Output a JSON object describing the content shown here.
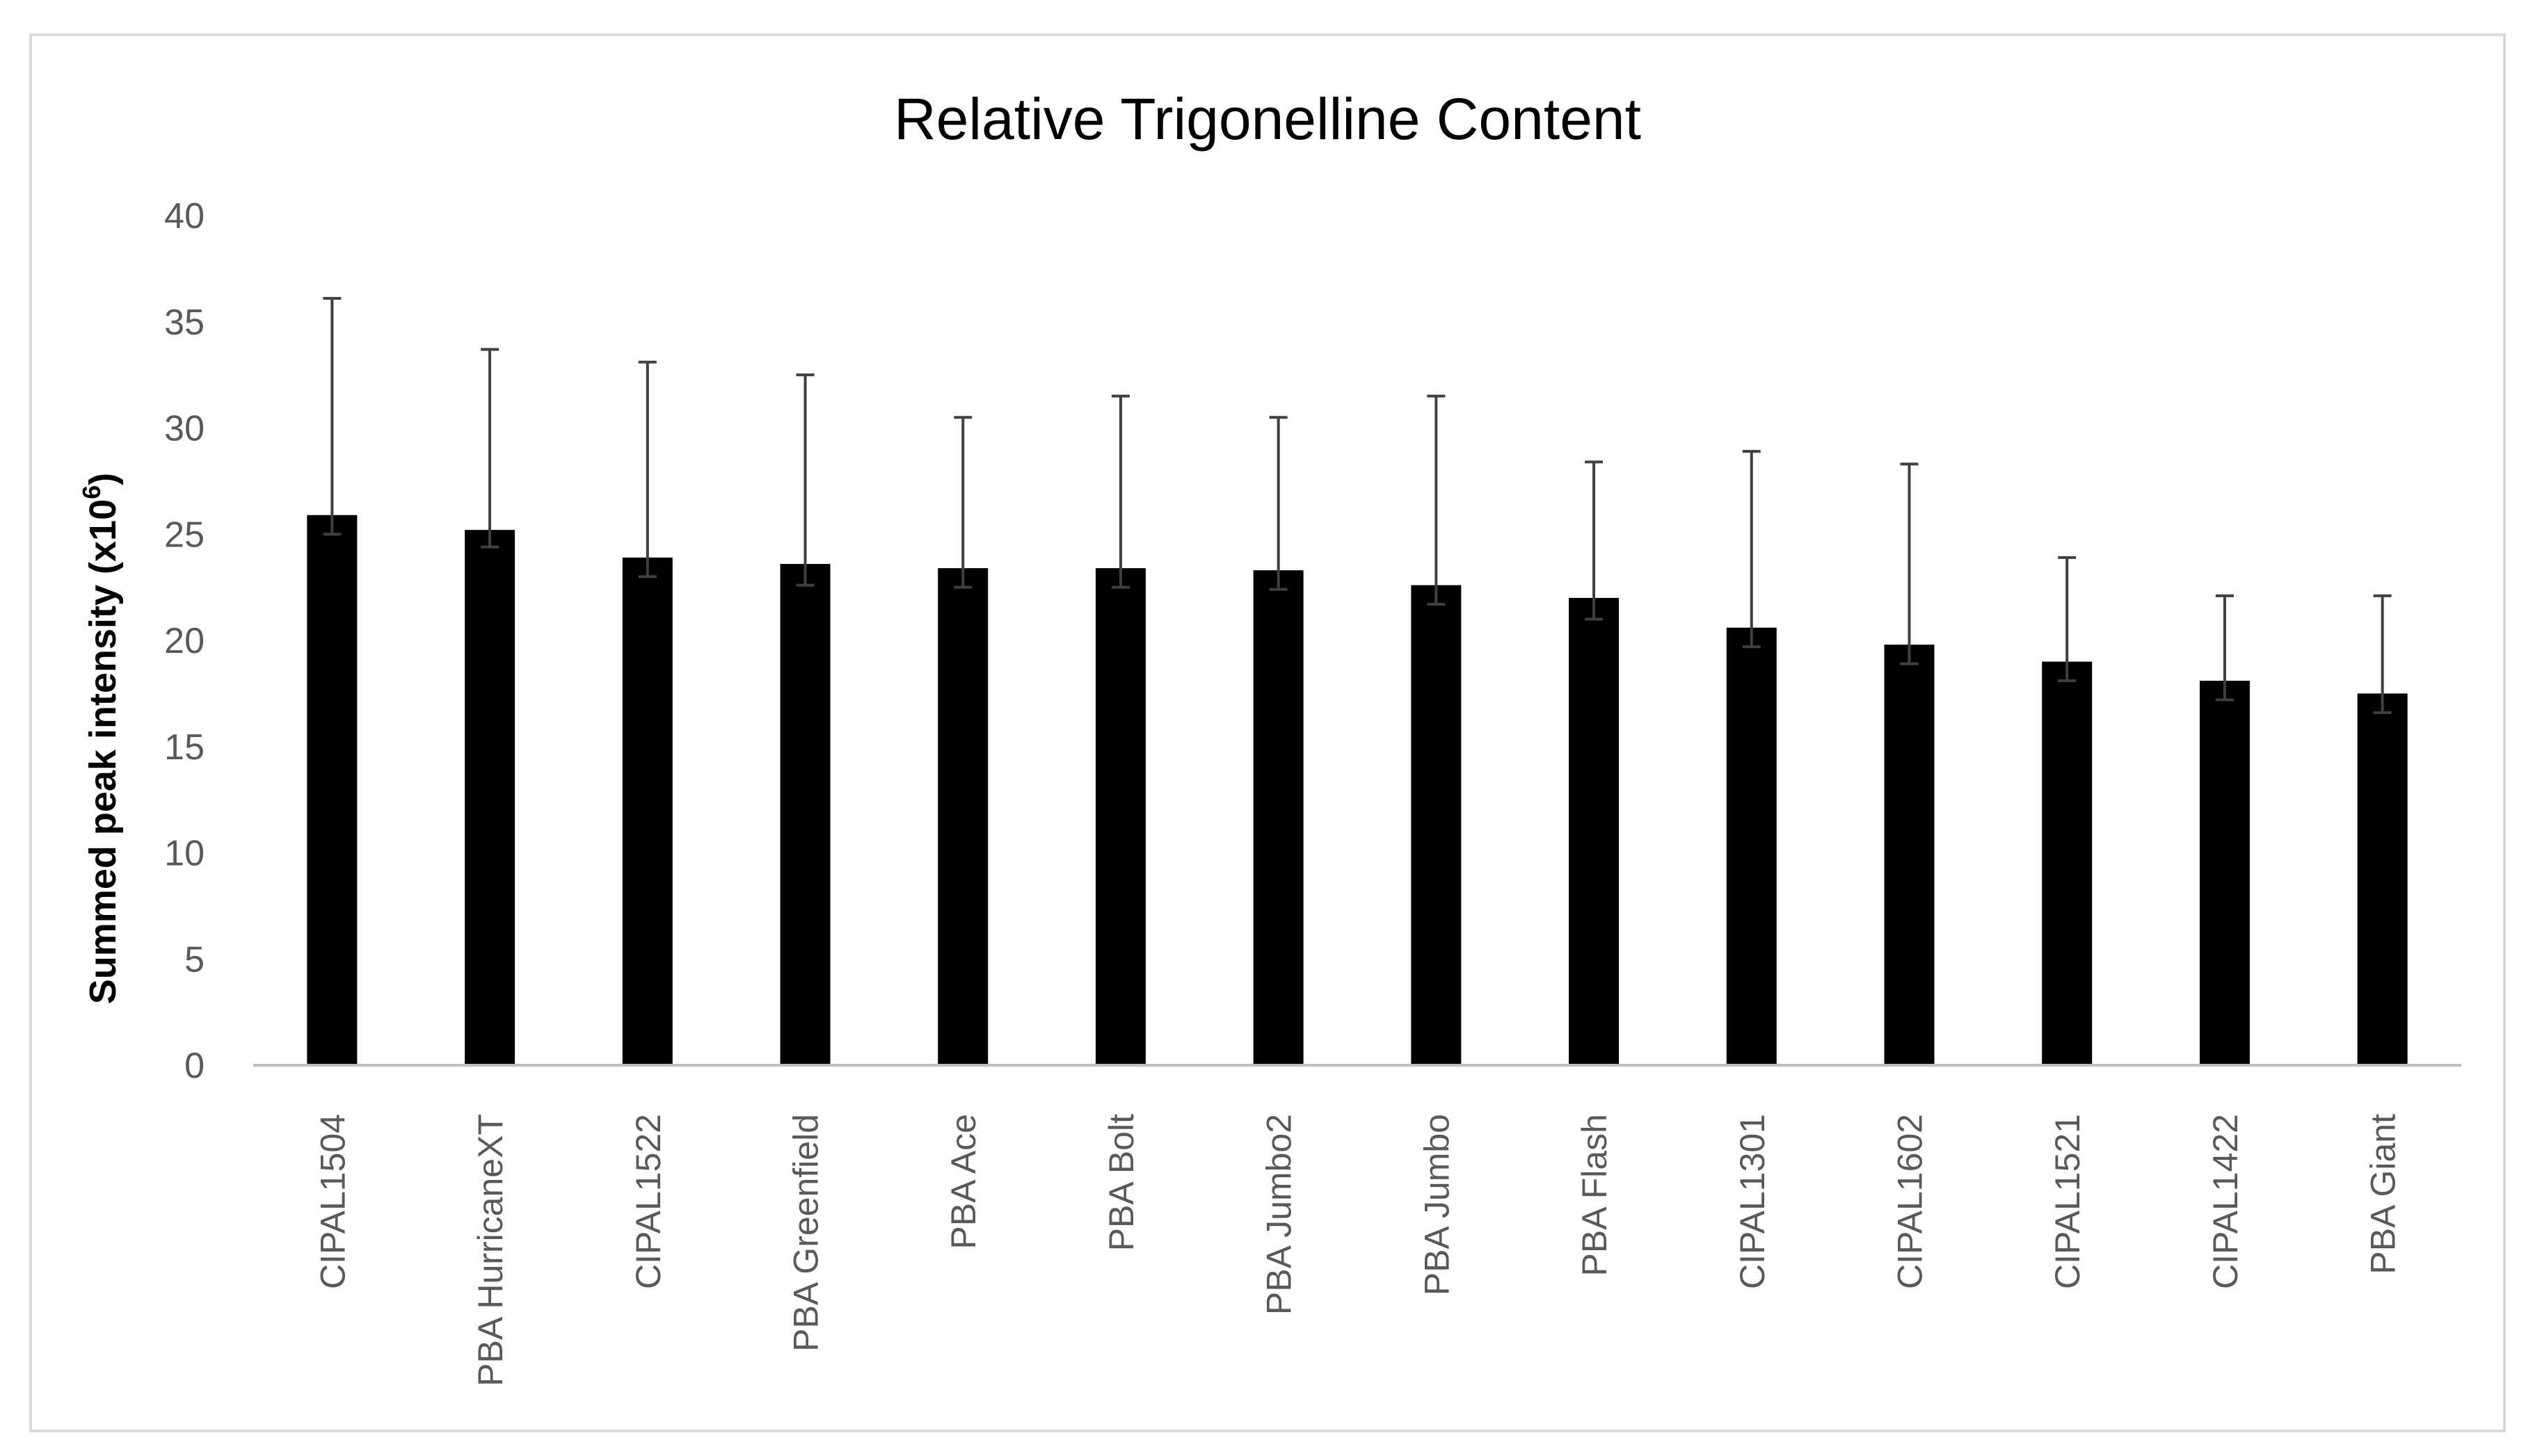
{
  "chart_data": {
    "type": "bar",
    "title": "Relative Trigonelline Content",
    "ylabel": "Summed peak intensity (x10",
    "ylabel_sup": "6",
    "ylabel_close": ")",
    "xlabel": "",
    "ylim": [
      0,
      40
    ],
    "yticks": [
      0,
      5,
      10,
      15,
      20,
      25,
      30,
      35,
      40
    ],
    "ytick_labels": [
      "0",
      "5",
      "10",
      "15",
      "20",
      "25",
      "30",
      "35",
      "40"
    ],
    "grid": false,
    "legend": "none",
    "categories": [
      "CIPAL1504",
      "PBA HurricaneXT",
      "CIPAL1522",
      "PBA Greenfield",
      "PBA Ace",
      "PBA Bolt",
      "PBA Jumbo2",
      "PBA Jumbo",
      "PBA Flash",
      "CIPAL1301",
      "CIPAL1602",
      "CIPAL1521",
      "CIPAL1422",
      "PBA Giant"
    ],
    "values": [
      25.9,
      25.2,
      23.9,
      23.6,
      23.4,
      23.4,
      23.3,
      22.6,
      22.0,
      20.6,
      19.8,
      19.0,
      18.1,
      17.5
    ],
    "error_upper": [
      36.1,
      33.7,
      33.1,
      32.5,
      30.5,
      31.5,
      30.5,
      31.5,
      28.4,
      28.9,
      28.3,
      23.9,
      22.1,
      22.1
    ],
    "error_lower": [
      25.0,
      24.4,
      23.0,
      22.6,
      22.5,
      22.5,
      22.4,
      21.7,
      21.0,
      19.7,
      18.9,
      18.1,
      17.2,
      16.6
    ],
    "colors": {
      "bar": "#000000",
      "error_bar": "#404040",
      "axis": "#bfbfbf",
      "tick_text": "#595959",
      "border": "#d9d9d9"
    }
  }
}
